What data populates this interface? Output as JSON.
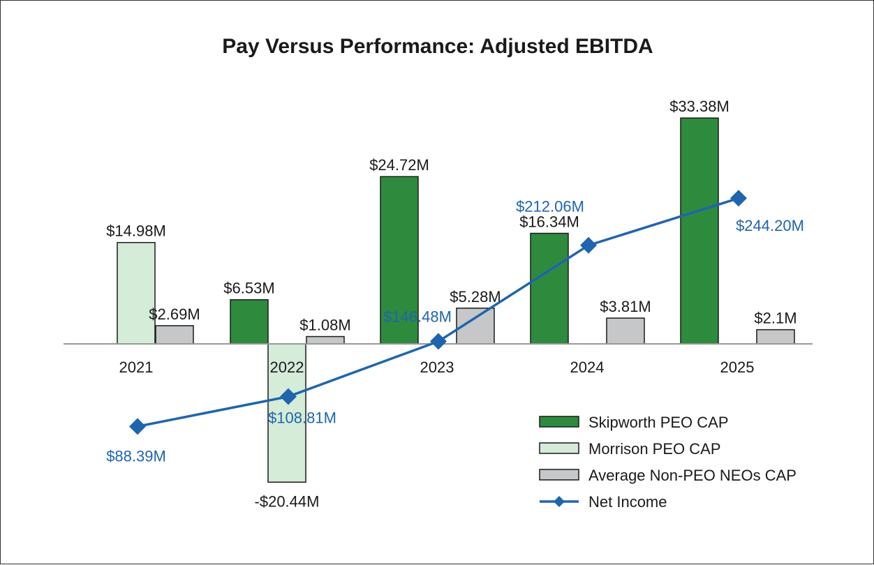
{
  "chart_data": {
    "type": "bar",
    "title": "Pay Versus Performance: Adjusted EBITDA",
    "categories": [
      "2021",
      "2022",
      "2023",
      "2024",
      "2025"
    ],
    "series": [
      {
        "name": "Skipworth PEO CAP",
        "kind": "bar",
        "color": "#2e8b3e",
        "values": [
          null,
          6.53,
          24.72,
          16.34,
          33.38
        ],
        "labels": [
          "",
          "$6.53M",
          "$24.72M",
          "$16.34M",
          "$33.38M"
        ]
      },
      {
        "name": "Morrison PEO CAP",
        "kind": "bar",
        "color": "#d4ecd8",
        "values": [
          14.98,
          -20.44,
          null,
          null,
          null
        ],
        "labels": [
          "$14.98M",
          "-$20.44M",
          "",
          "",
          ""
        ]
      },
      {
        "name": "Average Non-PEO NEOs CAP",
        "kind": "bar",
        "color": "#c6c7c9",
        "values": [
          2.69,
          1.08,
          5.28,
          3.81,
          2.1
        ],
        "labels": [
          "$2.69M",
          "$1.08M",
          "$5.28M",
          "$3.81M",
          "$2.1M"
        ]
      },
      {
        "name": "Net Income",
        "kind": "line",
        "color": "#1f65ad",
        "values": [
          88.39,
          108.81,
          146.48,
          212.06,
          244.2
        ],
        "labels": [
          "$88.39M",
          "$108.81M",
          "$146.48M",
          "$212.06M",
          "$244.20M"
        ]
      }
    ],
    "xlabel": "",
    "ylabel": "",
    "ylim_bars": [
      -25,
      35
    ],
    "ylim_line": [
      0,
      300
    ],
    "grid": false,
    "legend_position": "bottom-right"
  }
}
